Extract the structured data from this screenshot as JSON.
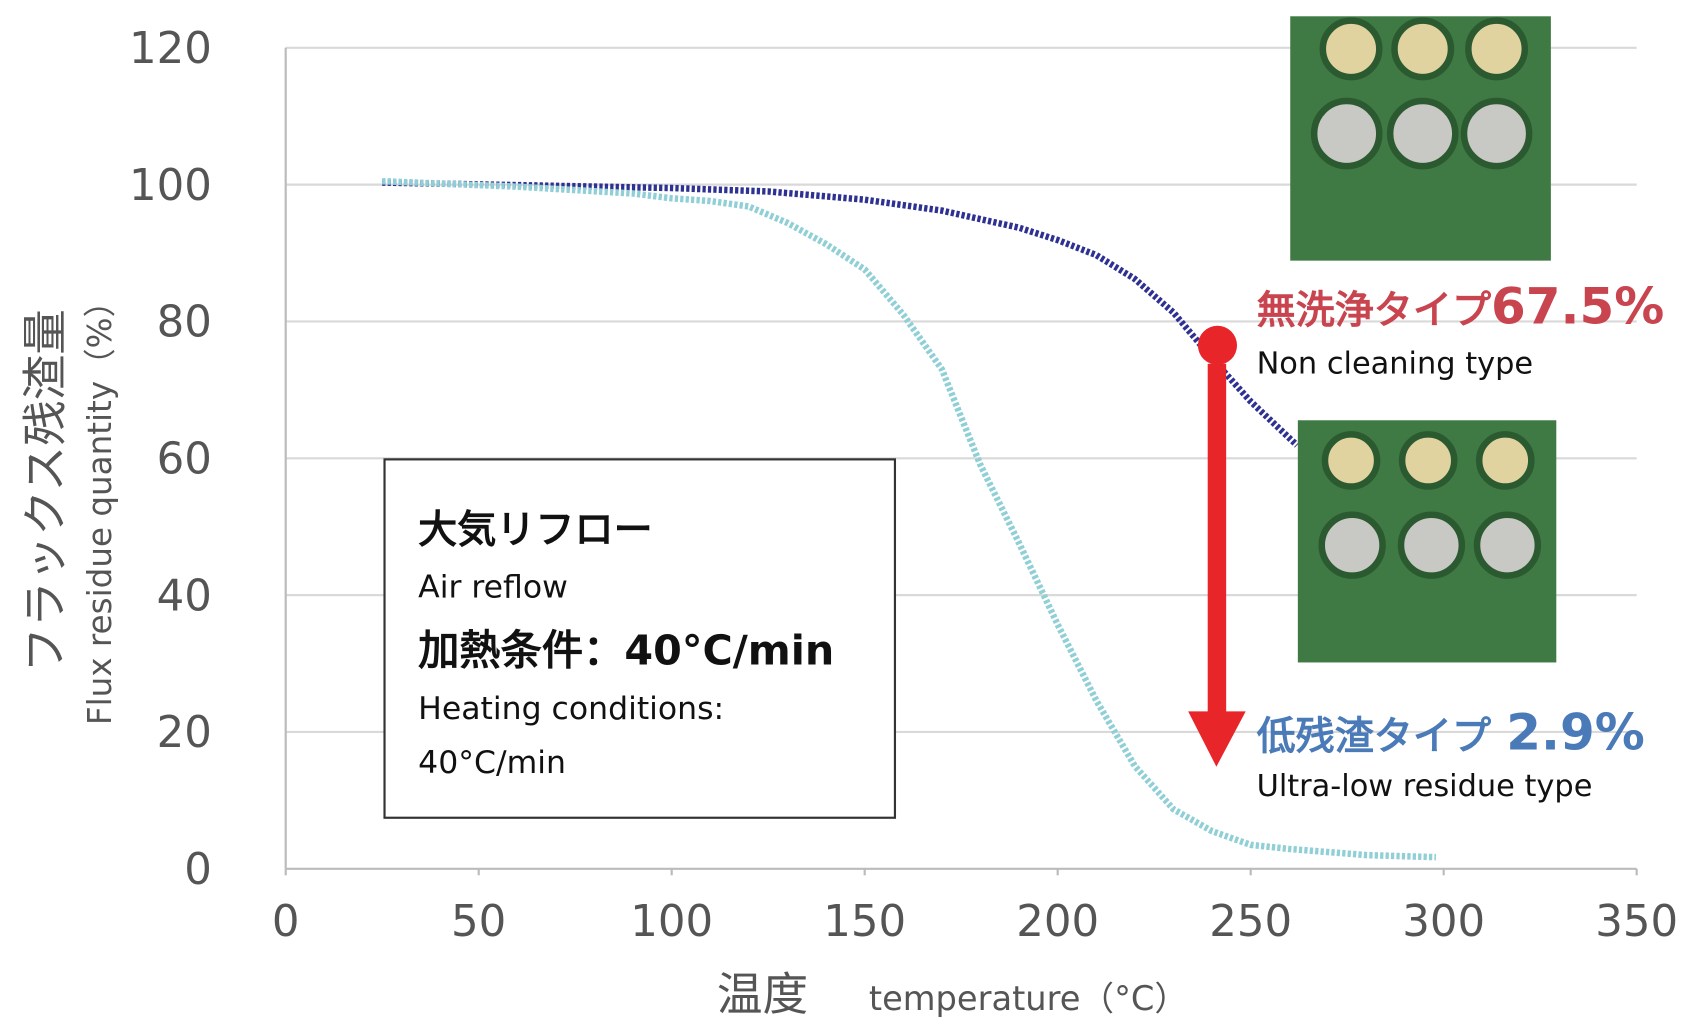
{
  "chart_data": {
    "type": "line",
    "title_y": "フラックス残渣量",
    "title_y_en": "Flux residue quantity（%）",
    "title_x": "温度",
    "title_x_en": "temperature（°C）",
    "xlim": [
      0,
      350
    ],
    "xticks": [
      0,
      50,
      100,
      150,
      200,
      250,
      300,
      350
    ],
    "ylim": [
      0,
      120
    ],
    "yticks": [
      0,
      20,
      40,
      60,
      80,
      100,
      120
    ],
    "grid": true,
    "series": [
      {
        "name": "Non cleaning type",
        "color": "#2e3192",
        "x": [
          25,
          100,
          125,
          150,
          170,
          190,
          200,
          210,
          220,
          230,
          240,
          250,
          262
        ],
        "values": [
          100.3,
          99.5,
          99,
          97.8,
          96.2,
          93.7,
          91.9,
          89.7,
          86.2,
          81.3,
          74.6,
          68.3,
          61.9
        ]
      },
      {
        "name": "Ultra-low residue type",
        "color": "#8fcfd5",
        "x": [
          25,
          60,
          90,
          100,
          110,
          120,
          130,
          140,
          150,
          160,
          170,
          180,
          190,
          200,
          210,
          220,
          230,
          240,
          250,
          260,
          280,
          298
        ],
        "values": [
          100.5,
          99.7,
          98.7,
          98,
          97.6,
          96.8,
          94.4,
          91.3,
          87.6,
          81,
          73,
          59,
          47.6,
          35.7,
          24.6,
          15,
          8.7,
          5.5,
          3.5,
          2.9,
          2,
          1.7
        ]
      }
    ],
    "annotations": {
      "non_cleaning": {
        "label": "無洗浄タイプ",
        "value_label": "67.5%",
        "label_en": "Non cleaning type"
      },
      "low_residue": {
        "label": "低残渣タイプ",
        "value_label": "2.9%",
        "label_en": "Ultra-low residue type"
      },
      "box": [
        "大気リフロー",
        "Air reflow",
        "加熱条件：40°C/min",
        "Heating conditions:",
        "40°C/min"
      ]
    }
  }
}
